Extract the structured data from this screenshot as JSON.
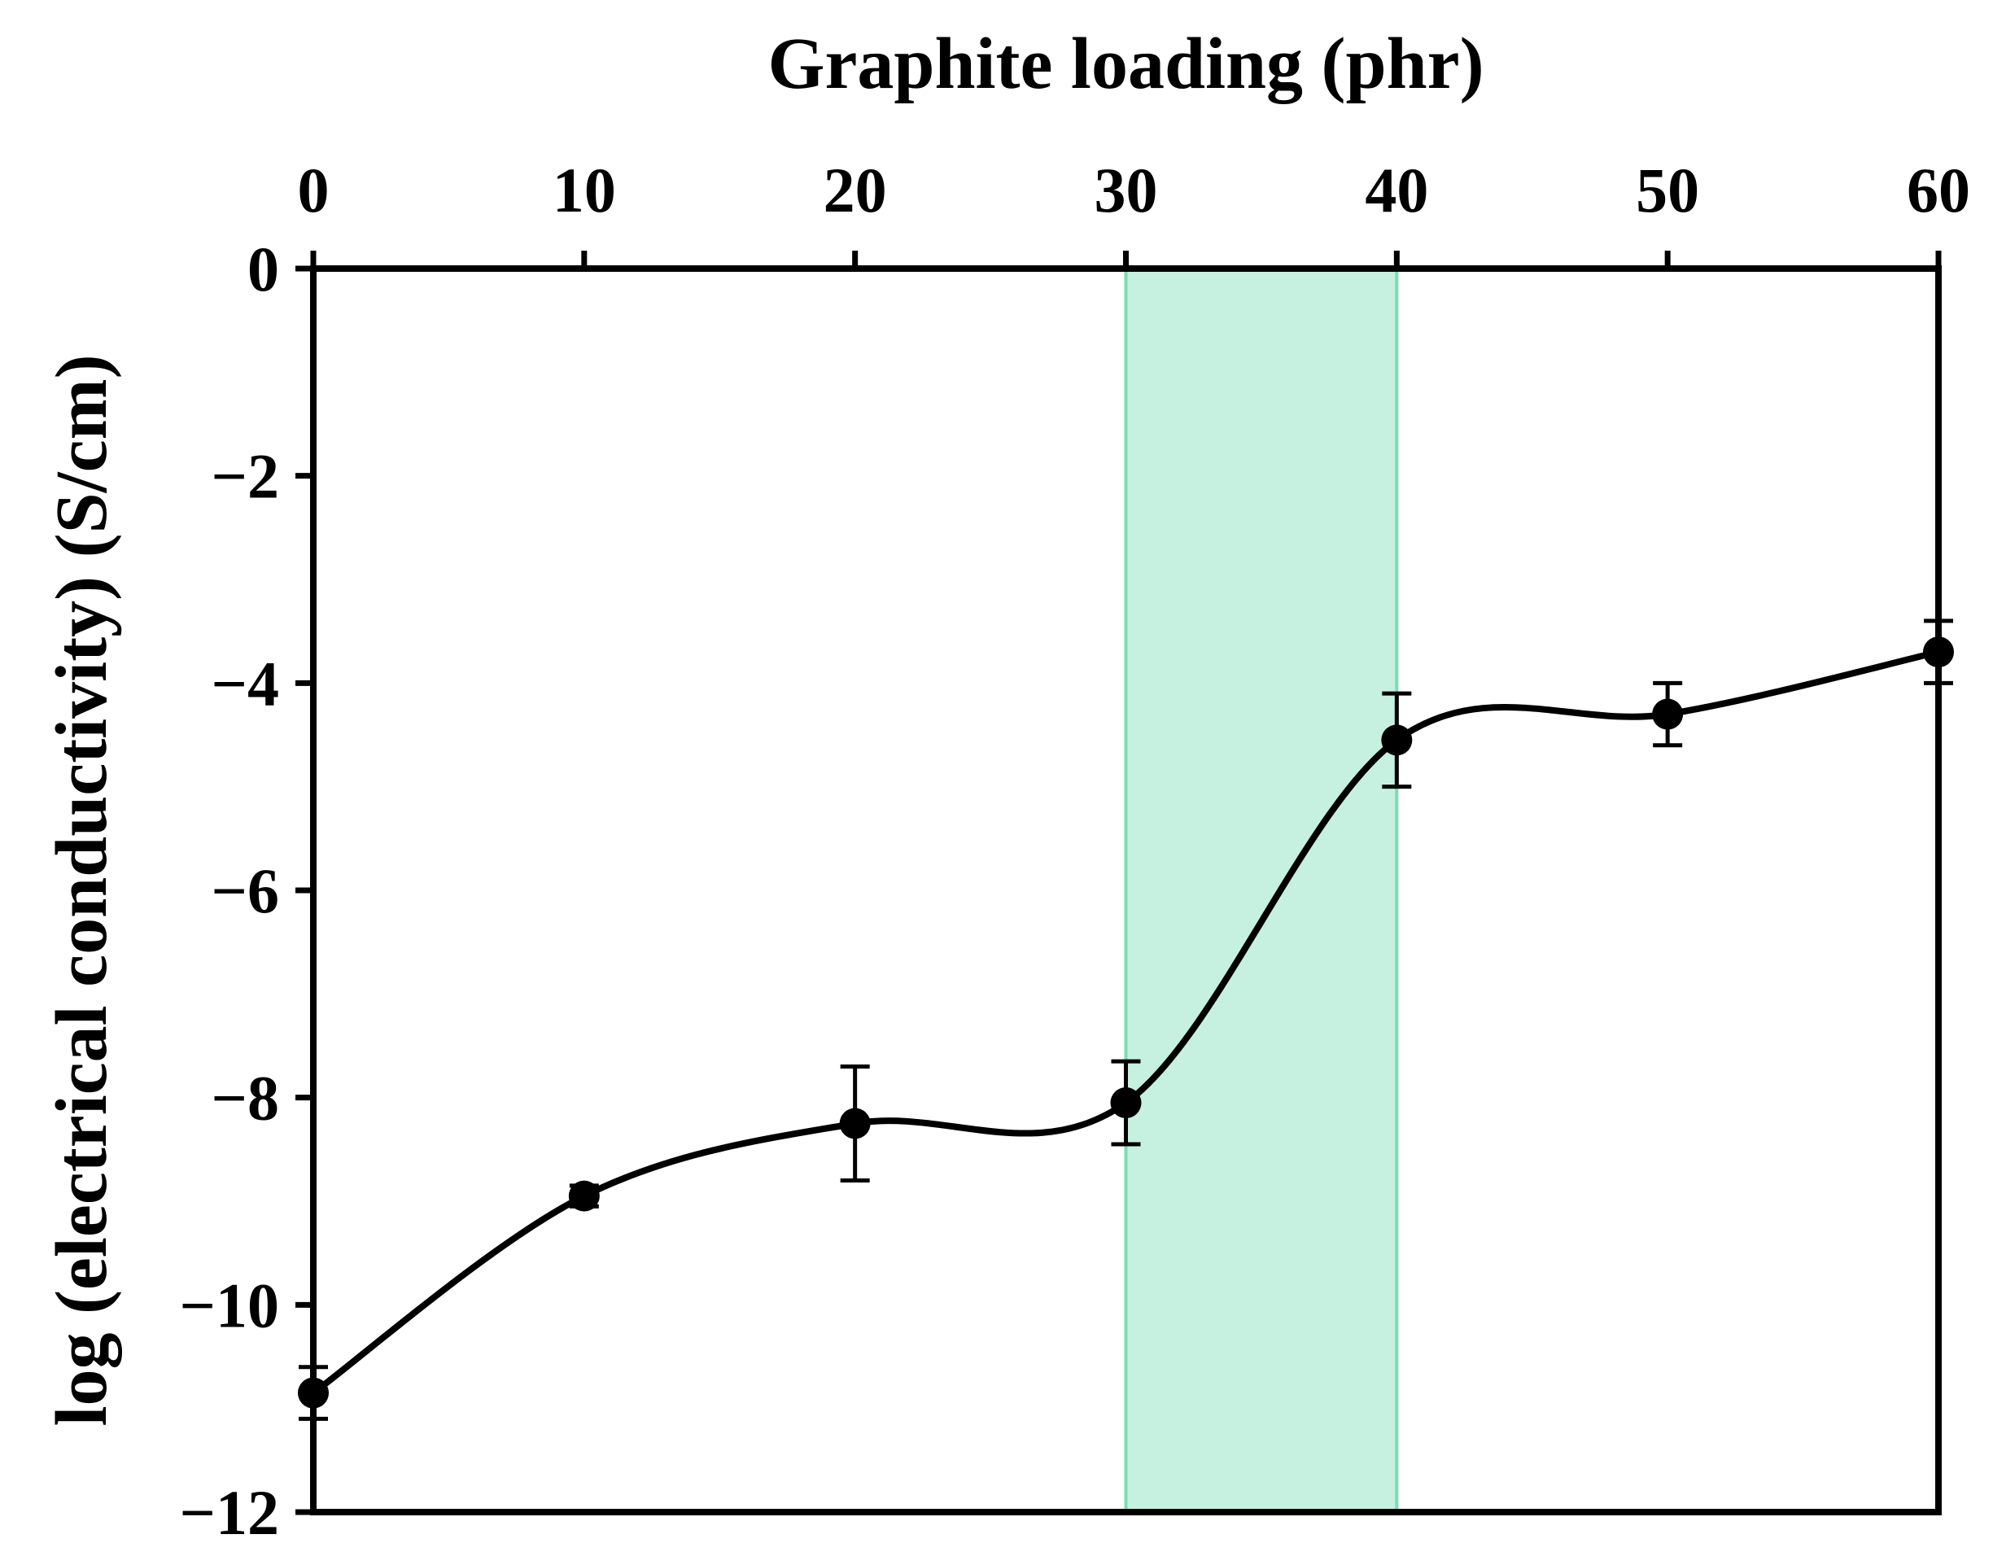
{
  "chart_data": {
    "type": "line",
    "title": "",
    "xlabel": "Graphite loading (phr)",
    "ylabel": "log (electrical conductivity) (S/cm)",
    "xlim": [
      0,
      60
    ],
    "ylim": [
      -12,
      0
    ],
    "x_axis_position": "top",
    "x_ticks": [
      0,
      10,
      20,
      30,
      40,
      50,
      60
    ],
    "x_tick_labels": [
      "0",
      "10",
      "20",
      "30",
      "40",
      "50",
      "60"
    ],
    "y_ticks": [
      0,
      -2,
      -4,
      -6,
      -8,
      -10,
      -12
    ],
    "y_tick_labels": [
      "0",
      "−2",
      "−4",
      "−6",
      "−8",
      "−10",
      "−12"
    ],
    "grid": false,
    "legend": "none",
    "highlight_region": {
      "x_start": 30,
      "x_end": 40,
      "fill_color": "#c6f1e0",
      "edge_color": "#7ddbb5"
    },
    "series": [
      {
        "x": [
          0,
          10,
          20,
          30,
          40,
          50,
          60
        ],
        "y": [
          -10.85,
          -8.95,
          -8.25,
          -8.05,
          -4.55,
          -4.3,
          -3.7
        ],
        "error": [
          0.25,
          0.1,
          0.55,
          0.4,
          0.45,
          0.3,
          0.3
        ],
        "color": "#000000",
        "smooth": true
      }
    ]
  }
}
